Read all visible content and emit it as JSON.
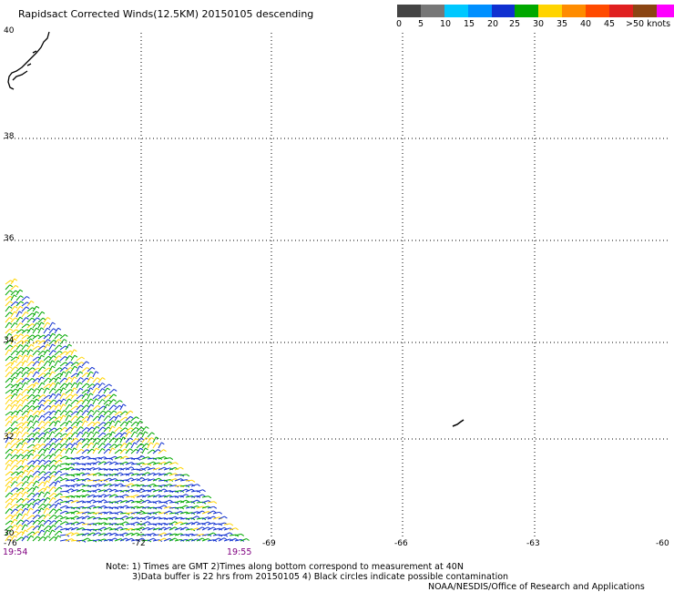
{
  "title": "Rapidsact Corrected Winds(12.5KM) 20150105 descending",
  "legend": {
    "colors": [
      "#444444",
      "#777777",
      "#00c8ff",
      "#0090ff",
      "#1030d0",
      "#00a800",
      "#ffd400",
      "#ff8c00",
      "#ff4a00",
      "#e02020",
      "#8b4513",
      "#ff00ff",
      "#9900cc"
    ],
    "labels": [
      "0",
      "5",
      "10",
      "15",
      "20",
      "25",
      "30",
      "35",
      "40",
      "45",
      ">50 knots"
    ]
  },
  "lat_labels": [
    "40",
    "38",
    "36",
    "34",
    "32",
    "30"
  ],
  "lon_labels": [
    "-76",
    "-72",
    "-69",
    "-66",
    "-63",
    "-60"
  ],
  "time_left": "19:54",
  "time_right": "19:55",
  "notes": {
    "line1": "Note: 1) Times are GMT 2)Times along bottom correspond to measurement at 40N",
    "line2": "3)Data buffer is 22 hrs from 20150105 4) Black circles indicate possible contamination",
    "credit": "NOAA/NESDIS/Office of Research and Applications"
  }
}
